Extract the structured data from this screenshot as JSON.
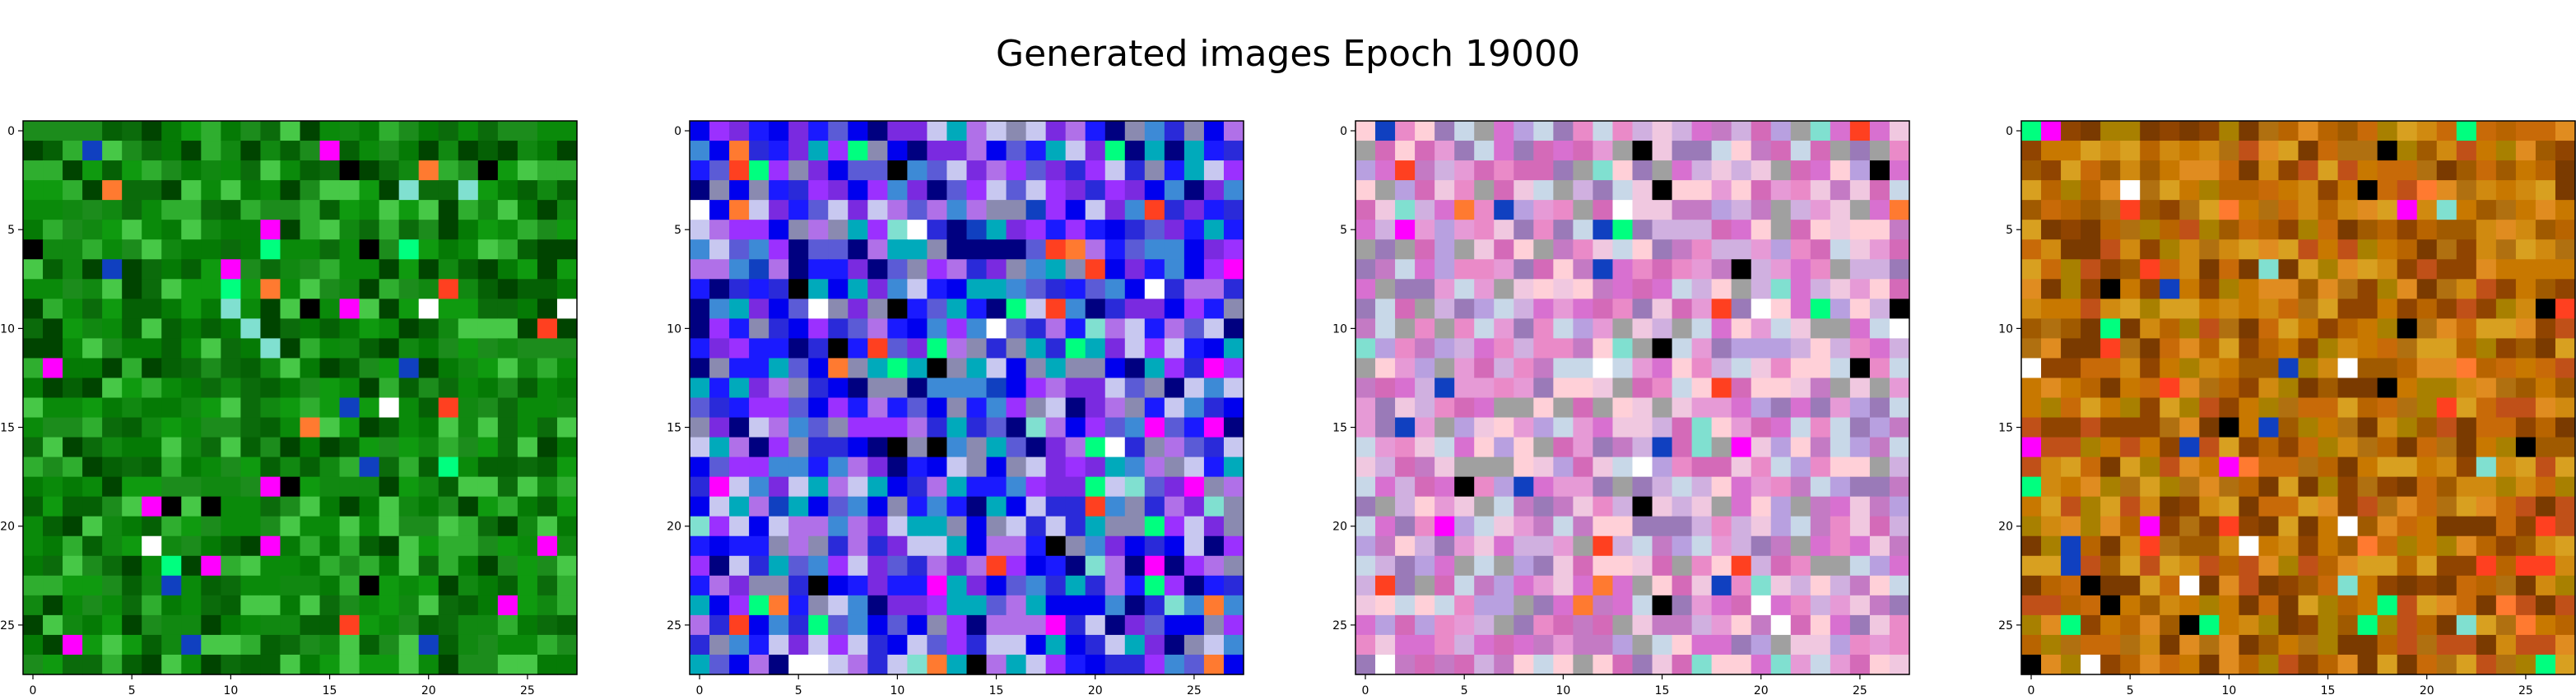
{
  "figure": {
    "title": "Generated images Epoch 19000"
  },
  "chart_data": [
    {
      "type": "heatmap",
      "panel": 1,
      "palette": "green",
      "image_size": 28,
      "xticks": [
        0,
        5,
        10,
        15,
        20,
        25
      ],
      "yticks": [
        0,
        5,
        10,
        15,
        20,
        25
      ],
      "xlim": [
        -0.5,
        27.5
      ],
      "ylim": [
        27.5,
        -0.5
      ],
      "grid": false,
      "seed": 11
    },
    {
      "type": "heatmap",
      "panel": 2,
      "palette": "blue-purple",
      "image_size": 28,
      "xticks": [
        0,
        5,
        10,
        15,
        20,
        25
      ],
      "yticks": [
        0,
        5,
        10,
        15,
        20,
        25
      ],
      "xlim": [
        -0.5,
        27.5
      ],
      "ylim": [
        27.5,
        -0.5
      ],
      "grid": false,
      "seed": 23
    },
    {
      "type": "heatmap",
      "panel": 3,
      "palette": "pink-lavender",
      "image_size": 28,
      "xticks": [
        0,
        5,
        10,
        15,
        20,
        25
      ],
      "yticks": [
        0,
        5,
        10,
        15,
        20,
        25
      ],
      "xlim": [
        -0.5,
        27.5
      ],
      "ylim": [
        27.5,
        -0.5
      ],
      "grid": false,
      "seed": 37
    },
    {
      "type": "heatmap",
      "panel": 4,
      "palette": "orange-brown",
      "image_size": 28,
      "xticks": [
        0,
        5,
        10,
        15,
        20,
        25
      ],
      "yticks": [
        0,
        5,
        10,
        15,
        20,
        25
      ],
      "xlim": [
        -0.5,
        27.5
      ],
      "ylim": [
        27.5,
        -0.5
      ],
      "grid": false,
      "seed": 53
    }
  ],
  "colors": {
    "green": [
      "#0a8a0a",
      "#057a05",
      "#0f9a0f",
      "#2fae2f",
      "#056005",
      "#1c8c1c",
      "#004400",
      "#47c847",
      "#0b6b0b",
      "#118811"
    ],
    "blue-purple": [
      "#0000ee",
      "#2a2ad9",
      "#7a2ae0",
      "#9b30ff",
      "#3d8ad6",
      "#5b5bd6",
      "#b070e8",
      "#000080",
      "#00aabb",
      "#c8c8f0",
      "#8a8ab0",
      "#1a1aff"
    ],
    "pink-lavender": [
      "#e69ad6",
      "#c47ac4",
      "#b8a0e0",
      "#d46ab8",
      "#f0c8e0",
      "#9a7ab8",
      "#d0b0e0",
      "#ea8ac8",
      "#a0a0a0",
      "#c8d8e8",
      "#d870d0",
      "#ffd0d8"
    ],
    "orange-brown": [
      "#c87800",
      "#b86400",
      "#d08a10",
      "#a05a00",
      "#c05018",
      "#d8a020",
      "#904400",
      "#e08c20",
      "#b07010",
      "#7a3a00",
      "#c86a08",
      "#a88000"
    ],
    "accents": [
      "#000000",
      "#ff7a30",
      "#ff4020",
      "#ffffff",
      "#80e0d0",
      "#1040c0",
      "#00ff7f",
      "#ff00ff"
    ]
  }
}
